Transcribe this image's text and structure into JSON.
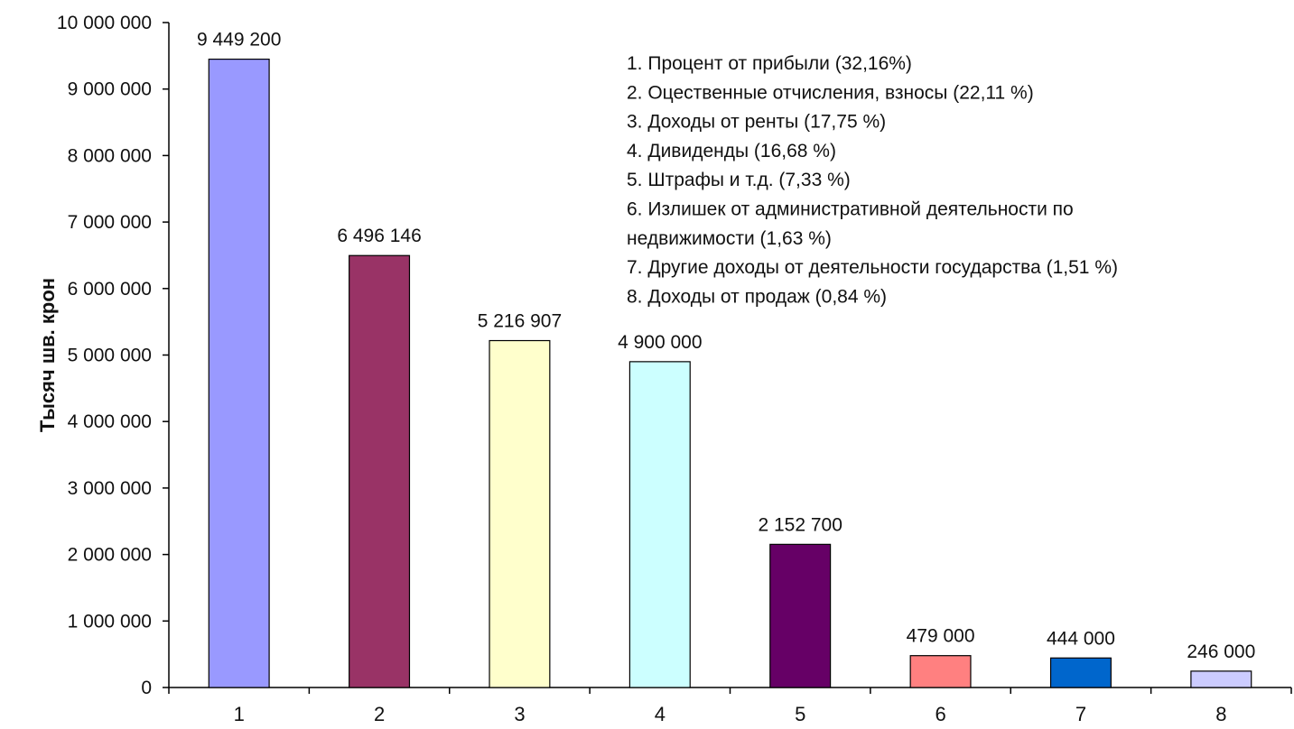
{
  "chart_data": {
    "type": "bar",
    "title": "",
    "xlabel": "",
    "ylabel": "Тысяч шв. крон",
    "categories": [
      "1",
      "2",
      "3",
      "4",
      "5",
      "6",
      "7",
      "8"
    ],
    "values": [
      9449200,
      6496146,
      5216907,
      4900000,
      2152700,
      479000,
      444000,
      246000
    ],
    "value_labels": [
      "9 449 200",
      "6 496 146",
      "5 216 907",
      "4 900 000",
      "2 152 700",
      "479 000",
      "444 000",
      "246 000"
    ],
    "bar_colors": [
      "#9999ff",
      "#993366",
      "#ffffcc",
      "#ccffff",
      "#660066",
      "#ff8080",
      "#0066cc",
      "#ccccff"
    ],
    "ylim": [
      0,
      10000000
    ],
    "y_ticks": [
      0,
      1000000,
      2000000,
      3000000,
      4000000,
      5000000,
      6000000,
      7000000,
      8000000,
      9000000,
      10000000
    ],
    "y_tick_labels": [
      "0",
      "1 000 000",
      "2 000 000",
      "3 000 000",
      "4 000 000",
      "5 000 000",
      "6 000 000",
      "7 000 000",
      "8 000 000",
      "9 000 000",
      "10 000 000"
    ],
    "grid": false,
    "legend_placement": "top-right",
    "legend_lines": [
      "1. Процент от прибыли (32,16%)",
      "2. Оцественные отчисления, взносы (22,11 %)",
      "3. Доходы от ренты (17,75 %)",
      "4. Дивиденды (16,68 %)",
      "5. Штрафы и т.д. (7,33 %)",
      "6. Излишек от административной деятельности по",
      "недвижимости (1,63 %)",
      "7. Другие доходы от деятельности государства (1,51 %)",
      "8. Доходы от продаж (0,84 %)"
    ]
  }
}
